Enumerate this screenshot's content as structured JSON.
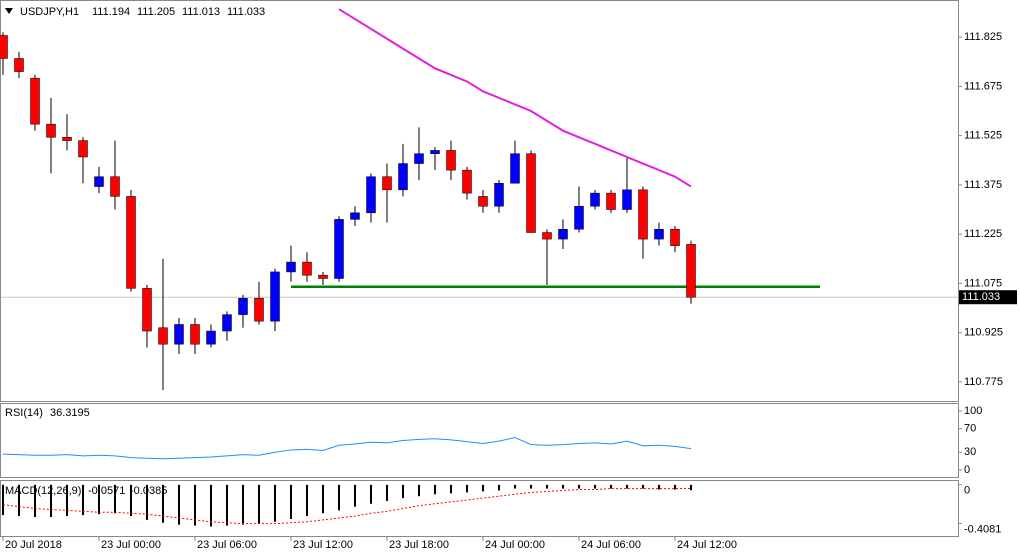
{
  "chart_data": [
    {
      "type": "candlestick",
      "title": "USDJPY,H1",
      "x": [
        "20 Jul 2018",
        null,
        null,
        null,
        null,
        null,
        "23 Jul 00:00",
        null,
        null,
        null,
        null,
        null,
        "23 Jul 06:00",
        null,
        null,
        null,
        null,
        null,
        "23 Jul 12:00",
        null,
        null,
        null,
        null,
        null,
        "23 Jul 18:00",
        null,
        null,
        null,
        null,
        null,
        "24 Jul 00:00",
        null,
        null,
        null,
        null,
        null,
        "24 Jul 06:00",
        null,
        null,
        null,
        null,
        null,
        "24 Jul 12:00",
        null
      ],
      "open": [
        111.83,
        111.76,
        111.7,
        111.56,
        111.52,
        111.51,
        111.37,
        111.4,
        111.34,
        111.06,
        110.94,
        110.89,
        110.95,
        110.89,
        110.93,
        110.98,
        111.03,
        110.96,
        111.11,
        111.14,
        111.1,
        111.09,
        111.27,
        111.29,
        111.4,
        111.36,
        111.44,
        111.47,
        111.48,
        111.42,
        111.34,
        111.31,
        111.38,
        111.47,
        111.23,
        111.21,
        111.24,
        111.31,
        111.35,
        111.3,
        111.36,
        111.21,
        111.24,
        111.194
      ],
      "high": [
        111.84,
        111.78,
        111.71,
        111.64,
        111.59,
        111.52,
        111.43,
        111.51,
        111.36,
        111.07,
        111.15,
        110.97,
        110.97,
        110.95,
        110.99,
        111.04,
        111.08,
        111.12,
        111.19,
        111.17,
        111.11,
        111.28,
        111.31,
        111.41,
        111.44,
        111.5,
        111.55,
        111.49,
        111.51,
        111.43,
        111.36,
        111.39,
        111.51,
        111.48,
        111.24,
        111.27,
        111.37,
        111.36,
        111.36,
        111.46,
        111.37,
        111.26,
        111.25,
        111.205
      ],
      "low": [
        111.71,
        111.7,
        111.54,
        111.41,
        111.48,
        111.38,
        111.35,
        111.3,
        111.05,
        110.88,
        110.75,
        110.86,
        110.86,
        110.88,
        110.9,
        110.94,
        110.95,
        110.93,
        111.08,
        111.08,
        111.07,
        111.08,
        111.25,
        111.26,
        111.26,
        111.34,
        111.39,
        111.42,
        111.39,
        111.33,
        111.29,
        111.29,
        111.38,
        111.23,
        111.07,
        111.18,
        111.23,
        111.3,
        111.29,
        111.29,
        111.15,
        111.19,
        111.17,
        111.013
      ],
      "close": [
        111.76,
        111.72,
        111.56,
        111.52,
        111.51,
        111.46,
        111.4,
        111.34,
        111.06,
        110.93,
        110.89,
        110.95,
        110.89,
        110.93,
        110.98,
        111.03,
        110.96,
        111.11,
        111.14,
        111.1,
        111.09,
        111.27,
        111.29,
        111.4,
        111.36,
        111.44,
        111.47,
        111.48,
        111.42,
        111.35,
        111.31,
        111.38,
        111.47,
        111.23,
        111.21,
        111.24,
        111.31,
        111.35,
        111.3,
        111.36,
        111.21,
        111.24,
        111.19,
        111.033
      ],
      "up_color": "#0000ff",
      "down_color": "#ff0000",
      "ma": {
        "color": "#e020e0",
        "values": [
          null,
          null,
          null,
          null,
          null,
          null,
          null,
          null,
          null,
          null,
          null,
          null,
          null,
          null,
          null,
          null,
          null,
          null,
          null,
          null,
          null,
          111.91,
          111.88,
          111.85,
          111.82,
          111.79,
          111.76,
          111.73,
          111.71,
          111.69,
          111.66,
          111.64,
          111.62,
          111.6,
          111.57,
          111.54,
          111.52,
          111.5,
          111.48,
          111.46,
          111.44,
          111.42,
          111.4,
          111.37
        ]
      },
      "support": {
        "value": 111.065,
        "color": "#008000"
      },
      "ylim": [
        110.72,
        111.935
      ],
      "yticks": [
        111.825,
        111.675,
        111.525,
        111.375,
        111.225,
        111.075,
        110.925,
        110.775
      ]
    },
    {
      "type": "line",
      "title": "RSI(14)",
      "color": "#1e90ff",
      "values": [
        27,
        26,
        25,
        25,
        26,
        24,
        25,
        24,
        21,
        20,
        19,
        20,
        21,
        22,
        24,
        26,
        25,
        30,
        34,
        35,
        33,
        42,
        44,
        47,
        46,
        50,
        52,
        53,
        51,
        48,
        45,
        49,
        55,
        43,
        42,
        43,
        45,
        46,
        44,
        49,
        41,
        42,
        40,
        36.3195
      ],
      "ylim": [
        0,
        100
      ],
      "yticks": [
        100,
        70,
        30,
        0
      ]
    },
    {
      "type": "macd",
      "title": "MACD(12,26,9)",
      "hist_color": "#000000",
      "signal_color": "#ff0000",
      "histogram": [
        -0.32,
        -0.33,
        -0.34,
        -0.34,
        -0.33,
        -0.32,
        -0.31,
        -0.3,
        -0.33,
        -0.37,
        -0.4,
        -0.42,
        -0.43,
        -0.44,
        -0.43,
        -0.42,
        -0.41,
        -0.39,
        -0.36,
        -0.33,
        -0.3,
        -0.27,
        -0.23,
        -0.2,
        -0.17,
        -0.14,
        -0.12,
        -0.1,
        -0.09,
        -0.08,
        -0.07,
        -0.06,
        -0.04,
        -0.04,
        -0.04,
        -0.04,
        -0.04,
        -0.04,
        -0.04,
        -0.04,
        -0.04,
        -0.05,
        -0.05,
        -0.0571
      ],
      "signal": [
        -0.21,
        -0.23,
        -0.25,
        -0.26,
        -0.27,
        -0.28,
        -0.29,
        -0.29,
        -0.3,
        -0.31,
        -0.33,
        -0.35,
        -0.37,
        -0.39,
        -0.4,
        -0.41,
        -0.41,
        -0.41,
        -0.4,
        -0.39,
        -0.37,
        -0.35,
        -0.33,
        -0.3,
        -0.28,
        -0.25,
        -0.22,
        -0.2,
        -0.18,
        -0.16,
        -0.14,
        -0.12,
        -0.1,
        -0.08,
        -0.07,
        -0.06,
        -0.05,
        -0.05,
        -0.04,
        -0.04,
        -0.04,
        -0.04,
        -0.04,
        -0.0385
      ],
      "ylim": [
        -0.54,
        0.04
      ],
      "yticks": [
        0,
        -0.4081
      ]
    }
  ]
}
